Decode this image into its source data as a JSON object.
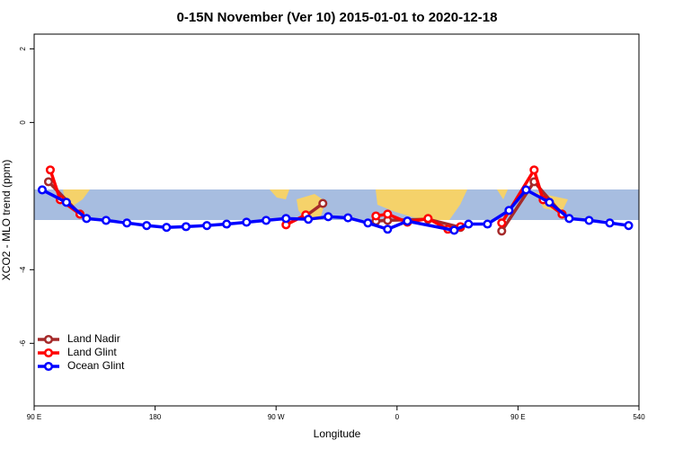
{
  "chart_data": {
    "type": "line",
    "title": "0-15N November (Ver 10)   2015-01-01 to 2020-12-18",
    "x_label": "Longitude",
    "y_label": "XCO2 - MLO trend (ppm)",
    "xlim": [
      90,
      540
    ],
    "ylim": [
      -7.7,
      2.4
    ],
    "xticks": [
      {
        "value": 90,
        "label": "90 E"
      },
      180,
      {
        "value": 270,
        "label": "90 W"
      },
      {
        "value": 360,
        "label": "0"
      },
      {
        "value": 450,
        "label": "90 E"
      },
      540
    ],
    "yticks": [
      2,
      0,
      -4,
      -6
    ],
    "legend": "bottomleft",
    "series": [
      {
        "name": "Land Nadir",
        "color": "#a52a2a",
        "x": [
          100.7,
          124.1,
          200,
          292.1,
          304.8,
          320,
          344.3,
          353,
          383.1,
          407.2,
          420,
          437.9,
          462,
          482.8
        ],
        "values": [
          -1.61,
          -2.49,
          null,
          -2.54,
          -2.2,
          null,
          -2.68,
          -2.66,
          -2.63,
          -2.85,
          null,
          -2.95,
          -1.61,
          -2.49
        ]
      },
      {
        "name": "Land Glint",
        "color": "#ff0000",
        "x": [
          102,
          109.4,
          124.1,
          200,
          277.4,
          292.1,
          320,
          344.3,
          353,
          367.7,
          383.1,
          397.8,
          407.2,
          420,
          437.9,
          462,
          468.7,
          482.8
        ],
        "values": [
          -1.29,
          -2.1,
          -2.49,
          null,
          -2.78,
          -2.51,
          null,
          -2.54,
          -2.49,
          -2.71,
          -2.61,
          -2.9,
          -2.83,
          null,
          -2.73,
          -1.29,
          -2.1,
          -2.49
        ]
      },
      {
        "name": "Ocean Glint",
        "color": "#0000ff",
        "x": [
          96,
          114,
          129,
          143.5,
          159,
          173.7,
          188.5,
          203,
          218.5,
          233.2,
          248,
          262.6,
          277.4,
          294,
          308.8,
          323.5,
          338.3,
          353,
          367.7,
          402.5,
          413.2,
          427.3,
          443.3,
          456,
          473.4,
          488.1,
          502.9,
          518.3,
          532.3
        ],
        "values": [
          -1.83,
          -2.17,
          -2.61,
          -2.66,
          -2.73,
          -2.8,
          -2.85,
          -2.83,
          -2.8,
          -2.76,
          -2.71,
          -2.66,
          -2.61,
          -2.63,
          -2.56,
          -2.59,
          -2.73,
          -2.9,
          -2.68,
          -2.93,
          -2.76,
          -2.76,
          -2.39,
          -1.83,
          -2.17,
          -2.61,
          -2.66,
          -2.73,
          -2.8
        ]
      }
    ]
  }
}
